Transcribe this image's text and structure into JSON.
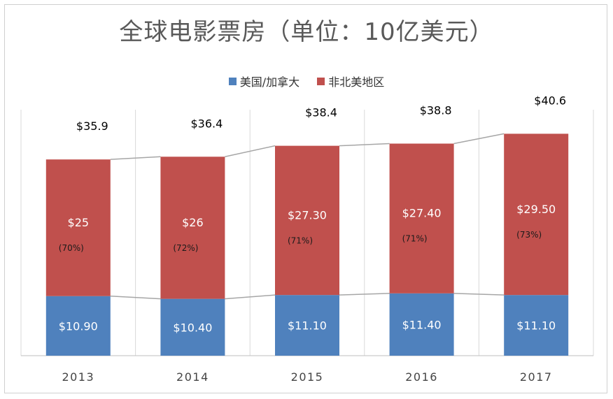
{
  "title": "全球电影票房（单位：10亿美元）",
  "colors": {
    "us": "#4f81bd",
    "intl": "#c0504d",
    "connector": "#a6a6a6",
    "grid": "#d9d9d9"
  },
  "chart_data": {
    "type": "bar",
    "stacked": true,
    "title": "全球电影票房（单位：10亿美元）",
    "categories": [
      "2013",
      "2014",
      "2015",
      "2016",
      "2017"
    ],
    "ylim": [
      0,
      45
    ],
    "legend_position": "top",
    "series": [
      {
        "name": "美国/加拿大",
        "values": [
          10.9,
          10.4,
          11.1,
          11.4,
          11.1
        ],
        "labels": [
          "$10.90",
          "$10.40",
          "$11.10",
          "$11.40",
          "$11.10"
        ]
      },
      {
        "name": "非北美地区",
        "values": [
          25,
          26,
          27.3,
          27.4,
          29.5
        ],
        "labels": [
          "$25",
          "$26",
          "$27.30",
          "$27.40",
          "$29.50"
        ],
        "share_labels": [
          "(70%)",
          "(72%)",
          "(71%)",
          "(71%)",
          "(73%)"
        ]
      }
    ],
    "totals": [
      35.9,
      36.4,
      38.4,
      38.8,
      40.6
    ],
    "total_labels": [
      "$35.9",
      "$36.4",
      "$38.4",
      "$38.8",
      "$40.6"
    ]
  }
}
